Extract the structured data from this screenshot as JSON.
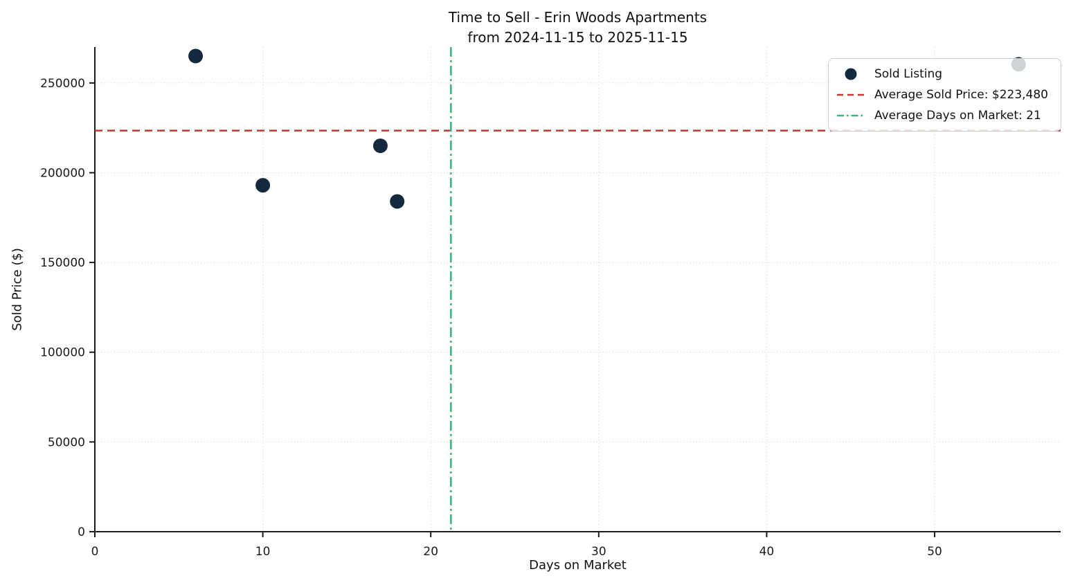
{
  "chart_data": {
    "type": "scatter",
    "title": "Time to Sell - Erin Woods Apartments",
    "subtitle": "from 2024-11-15 to 2025-11-15",
    "xlabel": "Days on Market",
    "ylabel": "Sold Price ($)",
    "xlim": [
      0,
      57.5
    ],
    "ylim": [
      0,
      270000
    ],
    "xticks": [
      0,
      10,
      20,
      30,
      40,
      50
    ],
    "yticks": [
      0,
      50000,
      100000,
      150000,
      200000,
      250000
    ],
    "grid": true,
    "grid_color": "#dcdcdc",
    "axis_color": "#1a1a1a",
    "tick_label_color": "#1a1a1a",
    "point_color": "#13293d",
    "point_radius": 10.5,
    "series_label": "Sold Listing",
    "points": [
      {
        "days_on_market": 6,
        "sold_price": 265000
      },
      {
        "days_on_market": 10,
        "sold_price": 193000
      },
      {
        "days_on_market": 17,
        "sold_price": 215000
      },
      {
        "days_on_market": 18,
        "sold_price": 184000
      },
      {
        "days_on_market": 55,
        "sold_price": 260400
      }
    ],
    "ref_lines": [
      {
        "axis": "y",
        "value": 223480,
        "color": "#c0392b",
        "dash": "dashed",
        "label": "Average Sold Price: $223,480"
      },
      {
        "axis": "x",
        "value": 21.2,
        "color": "#33b575",
        "dash": "dashdot",
        "label": "Average Days on Market: 21"
      }
    ],
    "legend_position": "upper right"
  }
}
